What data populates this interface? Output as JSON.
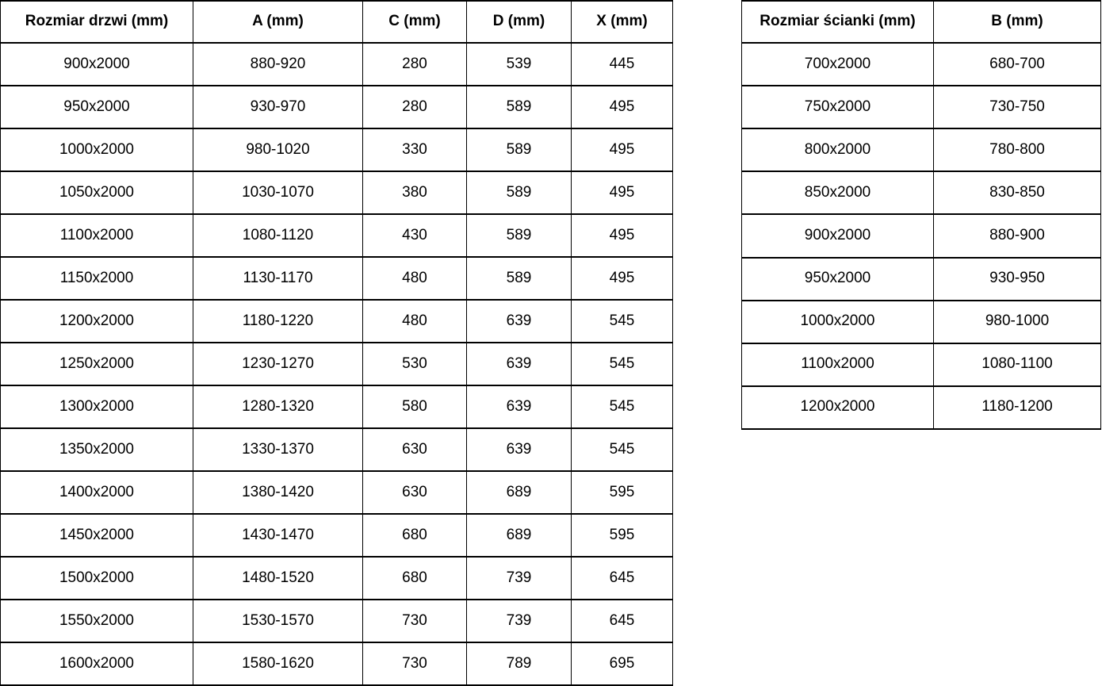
{
  "colors": {
    "background": "#ffffff",
    "border": "#000000",
    "text": "#000000"
  },
  "doors_table": {
    "headers": [
      "Rozmiar drzwi (mm)",
      "A (mm)",
      "C (mm)",
      "D (mm)",
      "X (mm)"
    ],
    "rows": [
      [
        "900x2000",
        "880-920",
        "280",
        "539",
        "445"
      ],
      [
        "950x2000",
        "930-970",
        "280",
        "589",
        "495"
      ],
      [
        "1000x2000",
        "980-1020",
        "330",
        "589",
        "495"
      ],
      [
        "1050x2000",
        "1030-1070",
        "380",
        "589",
        "495"
      ],
      [
        "1100x2000",
        "1080-1120",
        "430",
        "589",
        "495"
      ],
      [
        "1150x2000",
        "1130-1170",
        "480",
        "589",
        "495"
      ],
      [
        "1200x2000",
        "1180-1220",
        "480",
        "639",
        "545"
      ],
      [
        "1250x2000",
        "1230-1270",
        "530",
        "639",
        "545"
      ],
      [
        "1300x2000",
        "1280-1320",
        "580",
        "639",
        "545"
      ],
      [
        "1350x2000",
        "1330-1370",
        "630",
        "639",
        "545"
      ],
      [
        "1400x2000",
        "1380-1420",
        "630",
        "689",
        "595"
      ],
      [
        "1450x2000",
        "1430-1470",
        "680",
        "689",
        "595"
      ],
      [
        "1500x2000",
        "1480-1520",
        "680",
        "739",
        "645"
      ],
      [
        "1550x2000",
        "1530-1570",
        "730",
        "739",
        "645"
      ],
      [
        "1600x2000",
        "1580-1620",
        "730",
        "789",
        "695"
      ]
    ]
  },
  "walls_table": {
    "headers": [
      "Rozmiar ścianki (mm)",
      "B (mm)"
    ],
    "rows": [
      [
        "700x2000",
        "680-700"
      ],
      [
        "750x2000",
        "730-750"
      ],
      [
        "800x2000",
        "780-800"
      ],
      [
        "850x2000",
        "830-850"
      ],
      [
        "900x2000",
        "880-900"
      ],
      [
        "950x2000",
        "930-950"
      ],
      [
        "1000x2000",
        "980-1000"
      ],
      [
        "1100x2000",
        "1080-1100"
      ],
      [
        "1200x2000",
        "1180-1200"
      ]
    ]
  }
}
